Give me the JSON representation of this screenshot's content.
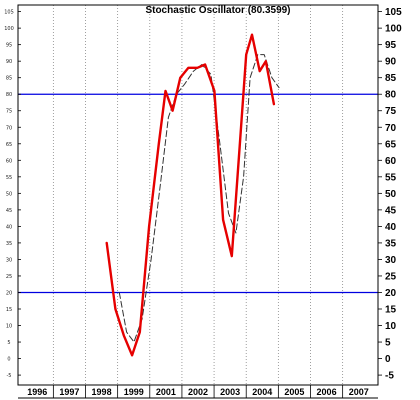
{
  "chart_data": {
    "type": "line",
    "title": "Stochastic Oscillator (80.3599)",
    "y_ticks_left": [
      "105",
      "100",
      "95",
      "90",
      "85",
      "80",
      "75",
      "70",
      "65",
      "60",
      "55",
      "50",
      "45",
      "40",
      "35",
      "30",
      "25",
      "20",
      "15",
      "10",
      "5",
      "0",
      "-5"
    ],
    "y_ticks_right": [
      "105",
      "100",
      "95",
      "90",
      "85",
      "80",
      "75",
      "70",
      "65",
      "60",
      "55",
      "50",
      "45",
      "40",
      "35",
      "30",
      "25",
      "20",
      "15",
      "10",
      "5",
      "0",
      "-5"
    ],
    "x_tick_labels": [
      "1996",
      "1997",
      "1998",
      "1999",
      "2001",
      "2002",
      "2003",
      "2004",
      "2005",
      "2006",
      "2007"
    ],
    "x_tick_positions": [
      0,
      1,
      2,
      3,
      4,
      5,
      6,
      7,
      8,
      9,
      10
    ],
    "x_range": [
      -0.6,
      10.6
    ],
    "ylim": [
      -8,
      107
    ],
    "grid": "vertical-dotted",
    "reference_lines": [
      {
        "value": 80,
        "color": "#0000e0"
      },
      {
        "value": 20,
        "color": "#0000e0"
      }
    ],
    "series": [
      {
        "style": "solid",
        "color": "#e60000",
        "x": [
          2.16,
          2.43,
          2.69,
          2.95,
          3.19,
          3.48,
          3.78,
          3.99,
          4.21,
          4.45,
          4.7,
          4.98,
          5.22,
          5.51,
          5.78,
          6.05,
          6.31,
          6.5,
          6.68,
          6.92,
          7.11,
          7.36
        ],
        "y": [
          35,
          15,
          7,
          1,
          8,
          40,
          65,
          81,
          75,
          85,
          88,
          88,
          89,
          81,
          42,
          31,
          66,
          92,
          98,
          87,
          90,
          77
        ]
      },
      {
        "style": "dashed",
        "color": "#333333",
        "x": [
          2.55,
          2.78,
          3.01,
          3.26,
          3.54,
          3.82,
          4.08,
          4.33,
          4.58,
          4.86,
          5.12,
          5.4,
          5.68,
          5.95,
          6.18,
          6.42,
          6.62,
          6.86,
          7.06,
          7.3,
          7.52
        ],
        "y": [
          20,
          8,
          5,
          12,
          30,
          52,
          73,
          80,
          83,
          87,
          89,
          86,
          65,
          44,
          38,
          55,
          85,
          92,
          92,
          85,
          82
        ]
      }
    ]
  }
}
